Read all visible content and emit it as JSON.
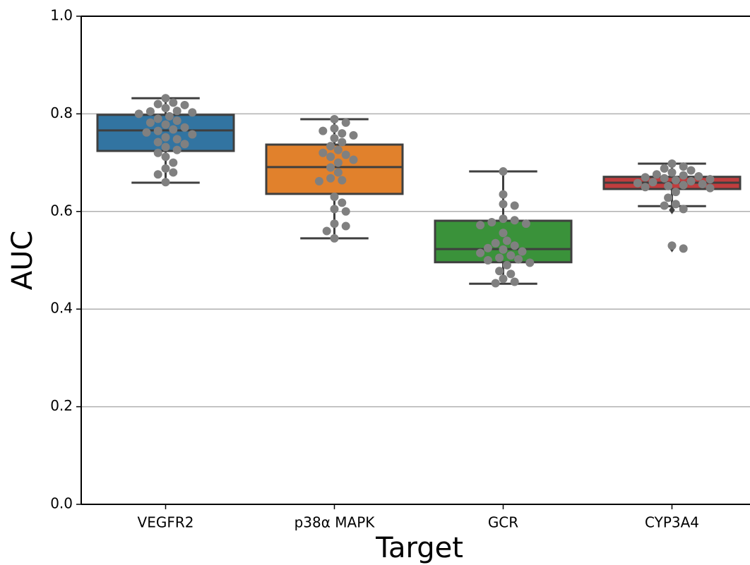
{
  "chart_data": {
    "type": "box",
    "x_label": "Target",
    "y_label": "AUC",
    "categories": [
      "VEGFR2",
      "p38α MAPK",
      "GCR",
      "CYP3A4"
    ],
    "colors": [
      "#3274a1",
      "#e1812c",
      "#3a923a",
      "#c03d3e"
    ],
    "boxes": [
      {
        "whislo": 0.659,
        "q1": 0.724,
        "med": 0.766,
        "q3": 0.798,
        "whishi": 0.832,
        "fliers": []
      },
      {
        "whislo": 0.545,
        "q1": 0.636,
        "med": 0.691,
        "q3": 0.737,
        "whishi": 0.789,
        "fliers": []
      },
      {
        "whislo": 0.452,
        "q1": 0.496,
        "med": 0.523,
        "q3": 0.581,
        "whishi": 0.682,
        "fliers": []
      },
      {
        "whislo": 0.611,
        "q1": 0.646,
        "med": 0.659,
        "q3": 0.671,
        "whishi": 0.698,
        "fliers": [
          0.603,
          0.525
        ]
      }
    ],
    "points_color": "#808080",
    "points": [
      [
        0.832,
        0.823,
        0.82,
        0.818,
        0.812,
        0.806,
        0.805,
        0.803,
        0.8,
        0.795,
        0.79,
        0.786,
        0.782,
        0.778,
        0.772,
        0.768,
        0.765,
        0.762,
        0.758,
        0.752,
        0.748,
        0.742,
        0.738,
        0.732,
        0.726,
        0.72,
        0.712,
        0.7,
        0.688,
        0.68,
        0.676,
        0.66
      ],
      [
        0.789,
        0.782,
        0.77,
        0.765,
        0.76,
        0.756,
        0.75,
        0.742,
        0.734,
        0.726,
        0.72,
        0.716,
        0.712,
        0.706,
        0.7,
        0.69,
        0.68,
        0.668,
        0.664,
        0.662,
        0.63,
        0.618,
        0.605,
        0.6,
        0.575,
        0.57,
        0.56,
        0.545
      ],
      [
        0.682,
        0.635,
        0.615,
        0.612,
        0.585,
        0.582,
        0.578,
        0.575,
        0.572,
        0.556,
        0.54,
        0.535,
        0.53,
        0.525,
        0.522,
        0.518,
        0.515,
        0.51,
        0.505,
        0.502,
        0.5,
        0.495,
        0.49,
        0.478,
        0.472,
        0.462,
        0.456,
        0.453
      ],
      [
        0.698,
        0.692,
        0.688,
        0.684,
        0.68,
        0.676,
        0.674,
        0.672,
        0.67,
        0.668,
        0.666,
        0.664,
        0.662,
        0.66,
        0.658,
        0.656,
        0.654,
        0.652,
        0.65,
        0.648,
        0.64,
        0.628,
        0.615,
        0.612,
        0.605,
        0.53,
        0.524
      ]
    ],
    "ylim": [
      0,
      1
    ],
    "yticks": [
      {
        "value": 0,
        "label": "0.0"
      },
      0.2,
      0.4,
      0.6,
      0.8,
      {
        "value": 1,
        "label": "1.0"
      }
    ],
    "grid": true
  }
}
